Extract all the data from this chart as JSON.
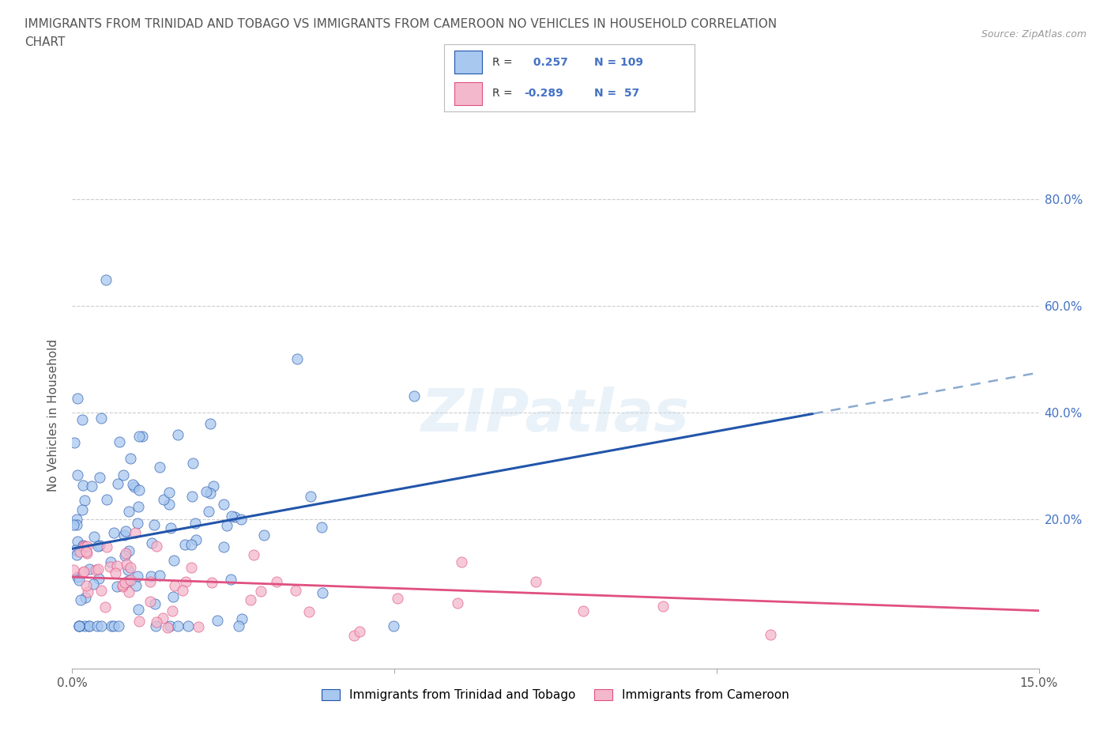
{
  "title_line1": "IMMIGRANTS FROM TRINIDAD AND TOBAGO VS IMMIGRANTS FROM CAMEROON NO VEHICLES IN HOUSEHOLD CORRELATION",
  "title_line2": "CHART",
  "source": "Source: ZipAtlas.com",
  "ylabel_label": "No Vehicles in Household",
  "x_min": 0.0,
  "x_max": 0.15,
  "y_min": -0.08,
  "y_max": 0.87,
  "color_tt": "#A8C8F0",
  "color_cm": "#F4B8CC",
  "line_color_tt": "#2255AA",
  "line_color_cm": "#E05080",
  "R_tt": 0.257,
  "N_tt": 109,
  "R_cm": -0.289,
  "N_cm": 57,
  "y_tick_vals": [
    0.2,
    0.4,
    0.6,
    0.8
  ],
  "y_tick_labels": [
    "20.0%",
    "40.0%",
    "60.0%",
    "80.0%"
  ],
  "x_tick_vals": [
    0.0,
    0.05,
    0.1,
    0.15
  ],
  "x_tick_labels": [
    "0.0%",
    "",
    "",
    "15.0%"
  ],
  "legend_label_tt": "Immigrants from Trinidad and Tobago",
  "legend_label_cm": "Immigrants from Cameroon",
  "R_label_color": "#4472C4",
  "watermark": "ZIPatlas",
  "tt_intercept": 0.145,
  "tt_slope": 2.2,
  "cm_intercept": 0.092,
  "cm_slope": -0.42
}
